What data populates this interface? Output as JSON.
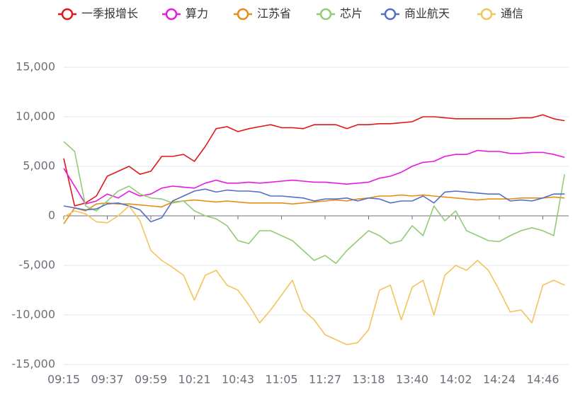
{
  "chart_data": {
    "type": "line",
    "categories": [
      "09:15",
      null,
      null,
      null,
      "09:37",
      null,
      null,
      null,
      "09:59",
      null,
      null,
      null,
      "10:21",
      null,
      null,
      null,
      "10:43",
      null,
      null,
      null,
      "11:05",
      null,
      null,
      null,
      "11:27",
      null,
      null,
      null,
      "13:18",
      null,
      null,
      null,
      "13:40",
      null,
      null,
      null,
      "14:02",
      null,
      null,
      null,
      "14:24",
      null,
      null,
      null,
      "14:46",
      null,
      null
    ],
    "ylim": [
      -15000,
      15000
    ],
    "yticks": [
      {
        "value": -15000,
        "label": "-15,000"
      },
      {
        "value": -10000,
        "label": "-10,000"
      },
      {
        "value": -5000,
        "label": "-5,000"
      },
      0,
      {
        "value": 5000,
        "label": "5,000"
      },
      {
        "value": 10000,
        "label": "10,000"
      },
      {
        "value": 15000,
        "label": "15,000"
      }
    ],
    "grid": true,
    "legend": "top",
    "series": [
      {
        "name": "一季报增长",
        "color": "#e0181b",
        "values": [
          5800,
          1000,
          1300,
          2000,
          4000,
          4500,
          5000,
          4200,
          4500,
          6000,
          6000,
          6200,
          5500,
          7000,
          8800,
          9000,
          8500,
          8800,
          9000,
          9200,
          8900,
          8900,
          8800,
          9200,
          9200,
          9200,
          8800,
          9200,
          9200,
          9300,
          9300,
          9400,
          9500,
          10000,
          10000,
          9900,
          9800,
          9800,
          9800,
          9800,
          9800,
          9800,
          9900,
          9900,
          10200,
          9800,
          9600
        ]
      },
      {
        "name": "算力",
        "color": "#e619e0",
        "values": [
          4800,
          3000,
          1200,
          1500,
          2200,
          1800,
          2500,
          2000,
          2200,
          2800,
          3000,
          2900,
          2800,
          3300,
          3600,
          3300,
          3300,
          3400,
          3300,
          3400,
          3500,
          3600,
          3500,
          3400,
          3400,
          3300,
          3200,
          3300,
          3400,
          3800,
          4000,
          4400,
          5000,
          5400,
          5500,
          6000,
          6200,
          6200,
          6600,
          6500,
          6500,
          6300,
          6300,
          6400,
          6400,
          6200,
          5900
        ]
      },
      {
        "name": "江苏省",
        "color": "#e88d14",
        "values": [
          -800,
          800,
          500,
          1200,
          1300,
          1200,
          1200,
          1100,
          1000,
          900,
          1400,
          1500,
          1600,
          1500,
          1400,
          1500,
          1400,
          1300,
          1300,
          1300,
          1300,
          1200,
          1300,
          1400,
          1500,
          1600,
          1500,
          1700,
          1800,
          2000,
          2000,
          2100,
          2000,
          2100,
          2000,
          1900,
          1800,
          1700,
          1600,
          1700,
          1700,
          1700,
          1800,
          1800,
          1800,
          1900,
          1800
        ]
      },
      {
        "name": "芯片",
        "color": "#91cc75",
        "values": [
          7500,
          6500,
          1000,
          500,
          1500,
          2500,
          3000,
          2200,
          1800,
          1700,
          1300,
          1500,
          500,
          0,
          -300,
          -1000,
          -2500,
          -2800,
          -1500,
          -1500,
          -2000,
          -2500,
          -3500,
          -4500,
          -4000,
          -4800,
          -3500,
          -2500,
          -1500,
          -2000,
          -2800,
          -2500,
          -1000,
          -2000,
          1000,
          -500,
          500,
          -1500,
          -2000,
          -2500,
          -2600,
          -2000,
          -1500,
          -1200,
          -1500,
          -2000,
          4200
        ]
      },
      {
        "name": "商业航天",
        "color": "#5470c6",
        "values": [
          1000,
          800,
          600,
          700,
          1200,
          1300,
          1000,
          600,
          -600,
          -200,
          1500,
          2000,
          2500,
          2700,
          2400,
          2600,
          2500,
          2500,
          2400,
          2000,
          2000,
          1900,
          1800,
          1500,
          1700,
          1700,
          1800,
          1500,
          1800,
          1700,
          1300,
          1500,
          1500,
          2000,
          1300,
          2400,
          2500,
          2400,
          2300,
          2200,
          2200,
          1500,
          1600,
          1500,
          1800,
          2200,
          2200
        ]
      },
      {
        "name": "通信",
        "color": "#f2c55c",
        "values": [
          -100,
          500,
          200,
          -600,
          -700,
          0,
          1000,
          -500,
          -3500,
          -4500,
          -5200,
          -6000,
          -8500,
          -6000,
          -5500,
          -7000,
          -7500,
          -9000,
          -10800,
          -9500,
          -8000,
          -6500,
          -9500,
          -10500,
          -12000,
          -12500,
          -13000,
          -12800,
          -11500,
          -7500,
          -7000,
          -10500,
          -7200,
          -6500,
          -10000,
          -6000,
          -5000,
          -5500,
          -4500,
          -5500,
          -7500,
          -9700,
          -9500,
          -10800,
          -7000,
          -6500,
          -7000
        ]
      }
    ]
  }
}
